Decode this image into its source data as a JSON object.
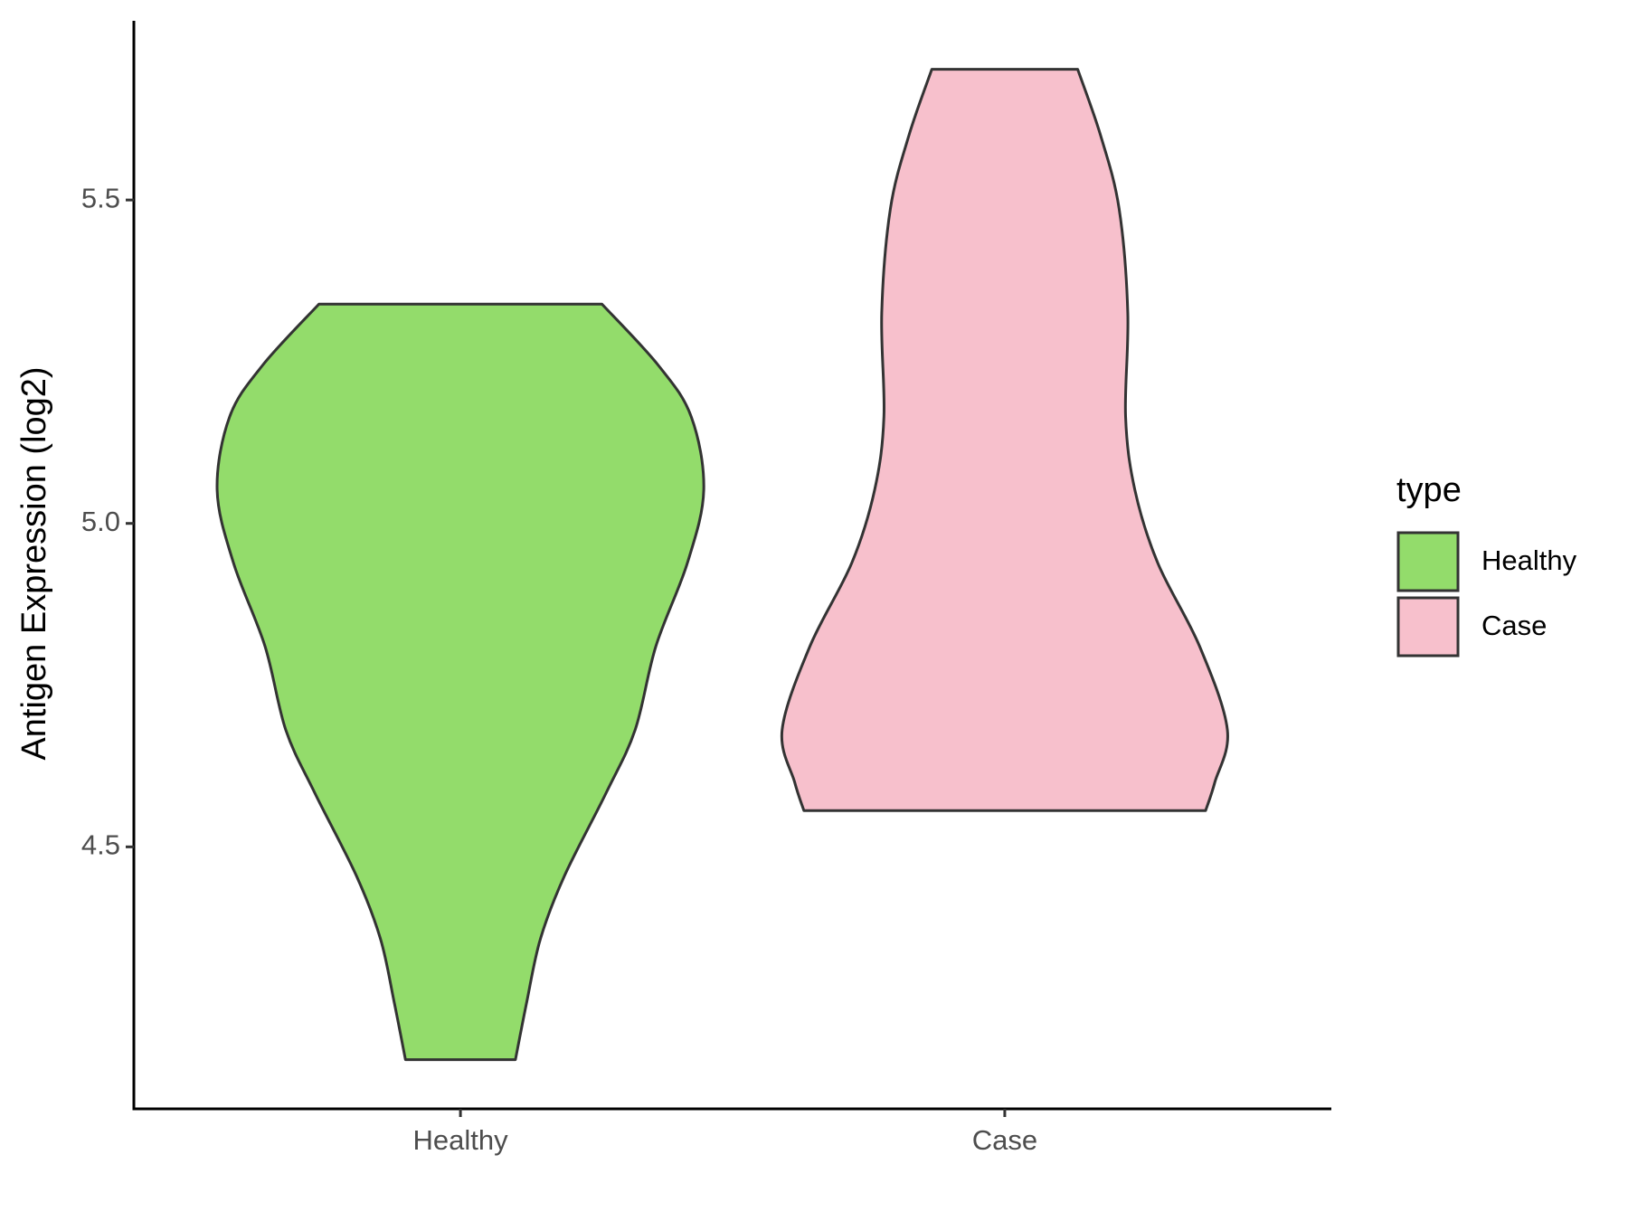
{
  "chart_data": {
    "type": "violin",
    "ylabel": "Antigen Expression (log2)",
    "categories": [
      "Healthy",
      "Case"
    ],
    "series": [
      {
        "name": "Healthy",
        "color": "#93dc6b",
        "y": [
          5.339,
          5.245,
          5.165,
          5.052,
          4.939,
          4.81,
          4.681,
          4.584,
          4.455,
          4.358,
          4.261,
          4.171
        ],
        "width": [
          0.26,
          0.363,
          0.424,
          0.447,
          0.417,
          0.359,
          0.321,
          0.268,
          0.191,
          0.147,
          0.122,
          0.101
        ]
      },
      {
        "name": "Case",
        "color": "#f7c0cc",
        "y": [
          5.702,
          5.6,
          5.487,
          5.326,
          5.165,
          5.052,
          4.939,
          4.81,
          4.681,
          4.6,
          4.556
        ],
        "width": [
          0.134,
          0.176,
          0.21,
          0.226,
          0.222,
          0.239,
          0.281,
          0.358,
          0.409,
          0.386,
          0.369
        ]
      }
    ],
    "ylim": [
      4.095,
      5.777
    ],
    "yticks": [
      4.5,
      {
        "value": 5,
        "label": "5.0"
      },
      5.5
    ],
    "legend_title": "type"
  }
}
